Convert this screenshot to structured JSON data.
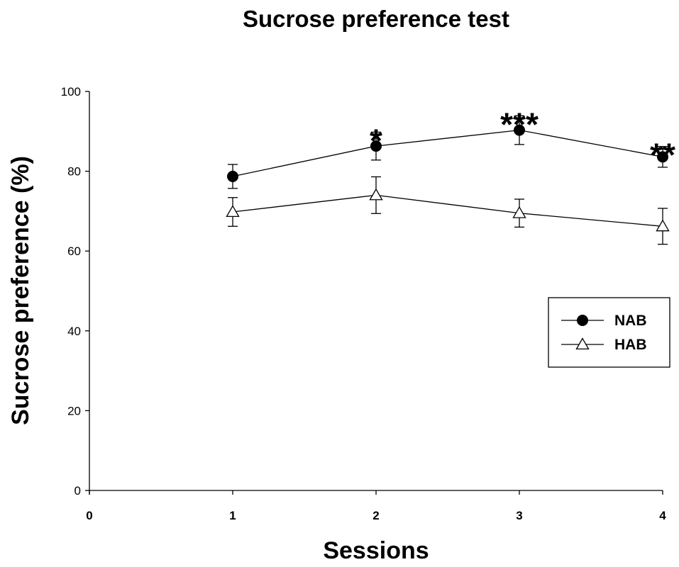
{
  "chart_data": {
    "type": "line",
    "title": "Sucrose preference test",
    "xlabel": "Sessions",
    "ylabel": "Sucrose preference (%)",
    "xlim": [
      0,
      4
    ],
    "ylim": [
      0,
      100
    ],
    "xticks": [
      "0",
      "1",
      "2",
      "3",
      "4"
    ],
    "yticks": [
      "0",
      "20",
      "40",
      "60",
      "80",
      "100"
    ],
    "grid": false,
    "legend_position": "right",
    "x": [
      1,
      2,
      3,
      4
    ],
    "series": [
      {
        "name": "NAB",
        "marker": "filled-circle",
        "values": [
          78.7,
          86.3,
          90.3,
          83.6
        ],
        "error": [
          3.0,
          3.5,
          3.6,
          2.6
        ]
      },
      {
        "name": "HAB",
        "marker": "open-triangle",
        "values": [
          69.8,
          74.0,
          69.5,
          66.2
        ],
        "error": [
          3.6,
          4.6,
          3.5,
          4.5
        ]
      }
    ],
    "annotations": [
      {
        "x": 2,
        "text": "*"
      },
      {
        "x": 3,
        "text": "***"
      },
      {
        "x": 4,
        "text": "**"
      }
    ]
  }
}
